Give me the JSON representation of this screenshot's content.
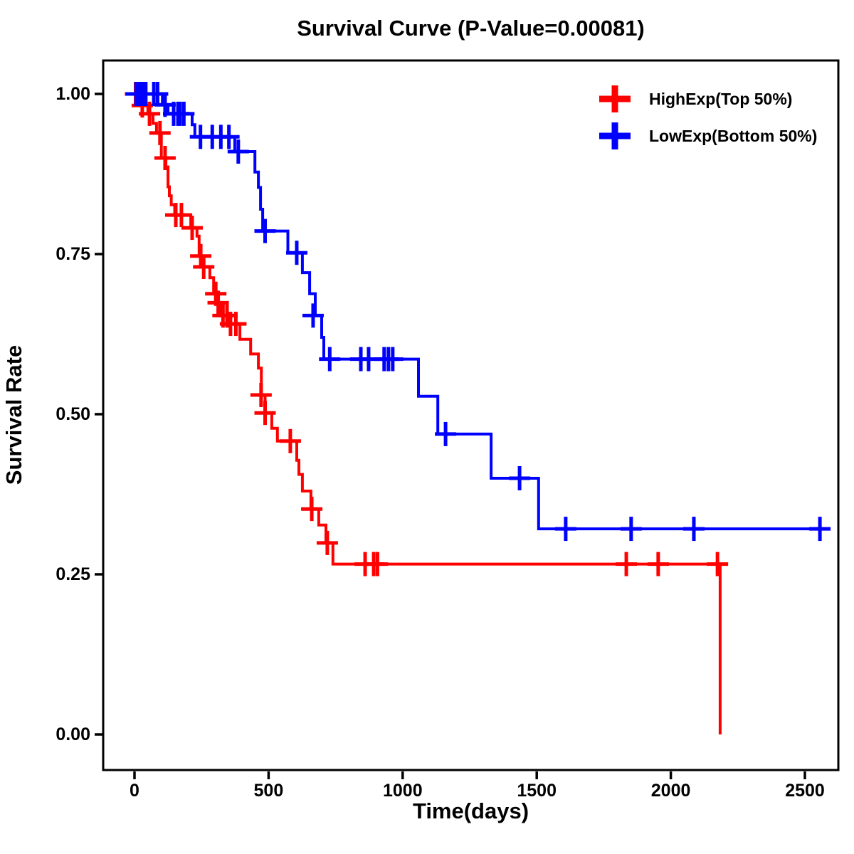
{
  "page": {
    "background": "#FFFFFF",
    "text_color": "#000000"
  },
  "p_value": "0.00081",
  "chart_data": {
    "type": "line",
    "subtype": "kaplan-meier-survival-step",
    "title": "Survival Curve (P-Value=0.00081)",
    "xlabel": "Time(days)",
    "ylabel": "Survival Rate",
    "grid": false,
    "x_axis": {
      "ticks": [
        0,
        500,
        1000,
        1500,
        2000,
        2500
      ],
      "range_days": [
        0,
        2590
      ]
    },
    "y_axis": {
      "ticks": [
        0.0,
        0.25,
        0.5,
        0.75,
        1.0
      ],
      "tick_labels": [
        "0.00",
        "0.25",
        "0.50",
        "0.75",
        "1.00"
      ],
      "range": [
        0,
        1
      ]
    },
    "legend": {
      "position": "top-right",
      "entries": [
        {
          "label": "HighExp(Top 50%)",
          "color": "#FF0000",
          "symbol": "plus-cross"
        },
        {
          "label": "LowExp(Bottom 50%)",
          "color": "#0000FF",
          "symbol": "plus-cross"
        }
      ]
    },
    "series": [
      {
        "name": "HighExp(Top 50%)",
        "color": "#FF0000",
        "points": [
          [
            0,
            1.0
          ],
          [
            19,
            0.982
          ],
          [
            50,
            0.969
          ],
          [
            69,
            0.954
          ],
          [
            82,
            0.939
          ],
          [
            100,
            0.9
          ],
          [
            117,
            0.886
          ],
          [
            125,
            0.855
          ],
          [
            130,
            0.841
          ],
          [
            137,
            0.827
          ],
          [
            150,
            0.811
          ],
          [
            210,
            0.791
          ],
          [
            233,
            0.778
          ],
          [
            241,
            0.747
          ],
          [
            255,
            0.73
          ],
          [
            281,
            0.713
          ],
          [
            295,
            0.688
          ],
          [
            308,
            0.674
          ],
          [
            321,
            0.654
          ],
          [
            353,
            0.641
          ],
          [
            393,
            0.617
          ],
          [
            433,
            0.594
          ],
          [
            462,
            0.572
          ],
          [
            473,
            0.53
          ],
          [
            487,
            0.502
          ],
          [
            512,
            0.478
          ],
          [
            533,
            0.458
          ],
          [
            605,
            0.428
          ],
          [
            613,
            0.406
          ],
          [
            626,
            0.38
          ],
          [
            658,
            0.352
          ],
          [
            687,
            0.327
          ],
          [
            714,
            0.299
          ],
          [
            740,
            0.266
          ],
          [
            2184,
            0.0
          ]
        ],
        "censors": [
          [
            4,
            1.0
          ],
          [
            29,
            0.982
          ],
          [
            56,
            0.969
          ],
          [
            95,
            0.939
          ],
          [
            114,
            0.9
          ],
          [
            154,
            0.811
          ],
          [
            175,
            0.811
          ],
          [
            215,
            0.791
          ],
          [
            247,
            0.747
          ],
          [
            258,
            0.73
          ],
          [
            303,
            0.688
          ],
          [
            312,
            0.674
          ],
          [
            330,
            0.654
          ],
          [
            345,
            0.654
          ],
          [
            358,
            0.641
          ],
          [
            378,
            0.641
          ],
          [
            472,
            0.53
          ],
          [
            487,
            0.502
          ],
          [
            581,
            0.458
          ],
          [
            661,
            0.352
          ],
          [
            719,
            0.299
          ],
          [
            860,
            0.266
          ],
          [
            892,
            0.266
          ],
          [
            906,
            0.266
          ],
          [
            1834,
            0.266
          ],
          [
            1953,
            0.266
          ],
          [
            2174,
            0.266
          ]
        ]
      },
      {
        "name": "LowExp(Bottom 50%)",
        "color": "#0000FF",
        "points": [
          [
            0,
            1.0
          ],
          [
            104,
            0.983
          ],
          [
            125,
            0.969
          ],
          [
            215,
            0.952
          ],
          [
            225,
            0.933
          ],
          [
            374,
            0.91
          ],
          [
            449,
            0.878
          ],
          [
            462,
            0.854
          ],
          [
            470,
            0.82
          ],
          [
            478,
            0.786
          ],
          [
            572,
            0.752
          ],
          [
            626,
            0.721
          ],
          [
            653,
            0.688
          ],
          [
            674,
            0.654
          ],
          [
            698,
            0.62
          ],
          [
            706,
            0.586
          ],
          [
            1059,
            0.528
          ],
          [
            1131,
            0.469
          ],
          [
            1330,
            0.4
          ],
          [
            1507,
            0.321
          ],
          [
            2590,
            0.321
          ]
        ],
        "censors": [
          [
            6,
            1.0
          ],
          [
            14,
            1.0
          ],
          [
            22,
            1.0
          ],
          [
            30,
            1.0
          ],
          [
            42,
            1.0
          ],
          [
            72,
            1.0
          ],
          [
            86,
            1.0
          ],
          [
            114,
            0.983
          ],
          [
            146,
            0.969
          ],
          [
            162,
            0.969
          ],
          [
            170,
            0.969
          ],
          [
            184,
            0.969
          ],
          [
            246,
            0.933
          ],
          [
            290,
            0.933
          ],
          [
            322,
            0.933
          ],
          [
            352,
            0.933
          ],
          [
            387,
            0.91
          ],
          [
            487,
            0.786
          ],
          [
            605,
            0.752
          ],
          [
            666,
            0.654
          ],
          [
            728,
            0.586
          ],
          [
            844,
            0.586
          ],
          [
            873,
            0.586
          ],
          [
            931,
            0.586
          ],
          [
            947,
            0.586
          ],
          [
            963,
            0.586
          ],
          [
            1160,
            0.469
          ],
          [
            1436,
            0.4
          ],
          [
            1608,
            0.321
          ],
          [
            1852,
            0.321
          ],
          [
            2086,
            0.321
          ],
          [
            2556,
            0.321
          ]
        ]
      }
    ]
  }
}
